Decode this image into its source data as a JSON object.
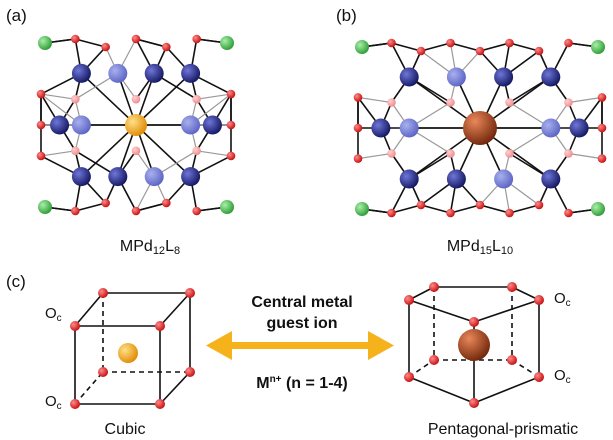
{
  "panels": {
    "a": {
      "label": "(a)",
      "caption_main": "MPd",
      "caption_sub1": "12",
      "caption_mid": "L",
      "caption_sub2": "8"
    },
    "b": {
      "label": "(b)",
      "caption_main": "MPd",
      "caption_sub1": "15",
      "caption_mid": "L",
      "caption_sub2": "10"
    },
    "c": {
      "label": "(c)"
    }
  },
  "center": {
    "line1": "Central metal",
    "line2": "guest ion",
    "formula_main": "M",
    "formula_sup": "n+",
    "formula_rest": " (n = 1-4)"
  },
  "oc_label": {
    "main": "O",
    "sub": "c"
  },
  "cubic_caption": "Cubic",
  "prismatic_caption": "Pentagonal-prismatic",
  "colors": {
    "pd": "#1a1f7a",
    "pd_faint": "#5a63c4",
    "oxygen": "#e01b1b",
    "oxygen_faint": "#f08a8a",
    "green": "#3cb043",
    "green_faint": "#a8dca8",
    "gold": "#f3a020",
    "copper": "#9e3a12",
    "arrow": "#f5b21a"
  }
}
